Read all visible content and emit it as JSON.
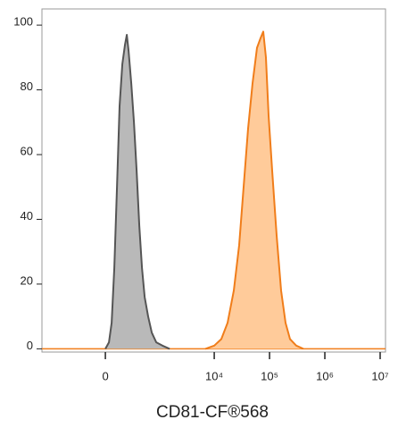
{
  "chart_data": {
    "type": "histogram-overlay",
    "x_label": "CD81-CF®568",
    "xscale": "arcsinh",
    "xlim": [
      -1500,
      12500000
    ],
    "xticks": [
      0,
      {
        "value": 10000,
        "label": "10⁴"
      },
      {
        "value": 100000,
        "label": "10⁵"
      },
      {
        "value": 1000000,
        "label": "10⁶"
      },
      {
        "value": 10000000,
        "label": "10⁷"
      }
    ],
    "ylim": [
      -1,
      105
    ],
    "yticks": [
      0,
      20,
      40,
      60,
      80,
      100
    ],
    "series": [
      {
        "color": "#555555",
        "fill": "#b9b9b9",
        "x": [
          0,
          32,
          57,
          82,
          108,
          135,
          165,
          196,
          218,
          242,
          279,
          321,
          366,
          416,
          471,
          531,
          620,
          727,
          880,
          1147,
          1552
        ],
        "values": [
          0,
          2,
          8,
          25,
          50,
          75,
          88,
          94,
          97,
          92,
          82,
          70,
          55,
          38,
          25,
          16,
          10,
          5,
          2,
          1,
          0
        ]
      },
      {
        "color": "#f07d1a",
        "fill": "#ffcb9a",
        "x": [
          6900,
          10000,
          13430,
          17430,
          22600,
          28240,
          34000,
          40900,
          49270,
          59340,
          68800,
          76970,
          86000,
          96200,
          111600,
          134400,
          161800,
          194700,
          234700,
          304300,
          409400
        ],
        "values": [
          0,
          1,
          3,
          8,
          18,
          32,
          50,
          68,
          82,
          93,
          96,
          98,
          90,
          72,
          55,
          35,
          18,
          8,
          3,
          1,
          0
        ]
      }
    ]
  }
}
